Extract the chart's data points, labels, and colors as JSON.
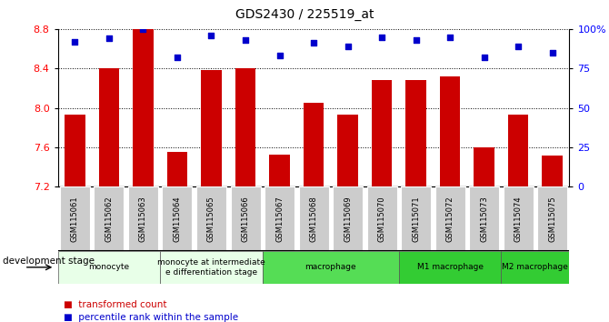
{
  "title": "GDS2430 / 225519_at",
  "categories": [
    "GSM115061",
    "GSM115062",
    "GSM115063",
    "GSM115064",
    "GSM115065",
    "GSM115066",
    "GSM115067",
    "GSM115068",
    "GSM115069",
    "GSM115070",
    "GSM115071",
    "GSM115072",
    "GSM115073",
    "GSM115074",
    "GSM115075"
  ],
  "bar_values": [
    7.93,
    8.4,
    8.8,
    7.55,
    8.38,
    8.4,
    7.53,
    8.05,
    7.93,
    8.28,
    8.28,
    8.32,
    7.6,
    7.93,
    7.52
  ],
  "percentile_values": [
    92,
    94,
    100,
    82,
    96,
    93,
    83,
    91,
    89,
    95,
    93,
    95,
    82,
    89,
    85
  ],
  "ylim_left": [
    7.2,
    8.8
  ],
  "ylim_right": [
    0,
    100
  ],
  "yticks_left": [
    7.2,
    7.6,
    8.0,
    8.4,
    8.8
  ],
  "yticks_right": [
    0,
    25,
    50,
    75,
    100
  ],
  "ytick_labels_right": [
    "0",
    "25",
    "50",
    "75",
    "100%"
  ],
  "bar_color": "#cc0000",
  "dot_color": "#0000cc",
  "grid_color": "#000000",
  "stage_groups": [
    {
      "label": "monocyte",
      "indices": [
        0,
        1,
        2
      ],
      "color": "#e8ffe8"
    },
    {
      "label": "monocyte at intermediate\ne differentiation stage",
      "indices": [
        3,
        4,
        5
      ],
      "color": "#e8ffe8"
    },
    {
      "label": "macrophage",
      "indices": [
        6,
        7,
        8,
        9
      ],
      "color": "#55dd55"
    },
    {
      "label": "M1 macrophage",
      "indices": [
        10,
        11,
        12
      ],
      "color": "#33cc33"
    },
    {
      "label": "M2 macrophage",
      "indices": [
        13,
        14
      ],
      "color": "#33cc33"
    }
  ],
  "xlabel_stage": "development stage",
  "legend_items": [
    {
      "label": "transformed count",
      "color": "#cc0000"
    },
    {
      "label": "percentile rank within the sample",
      "color": "#0000cc"
    }
  ],
  "tick_bg_color": "#cccccc",
  "bar_width": 0.6,
  "fig_width": 6.7,
  "fig_height": 3.54,
  "dpi": 100
}
